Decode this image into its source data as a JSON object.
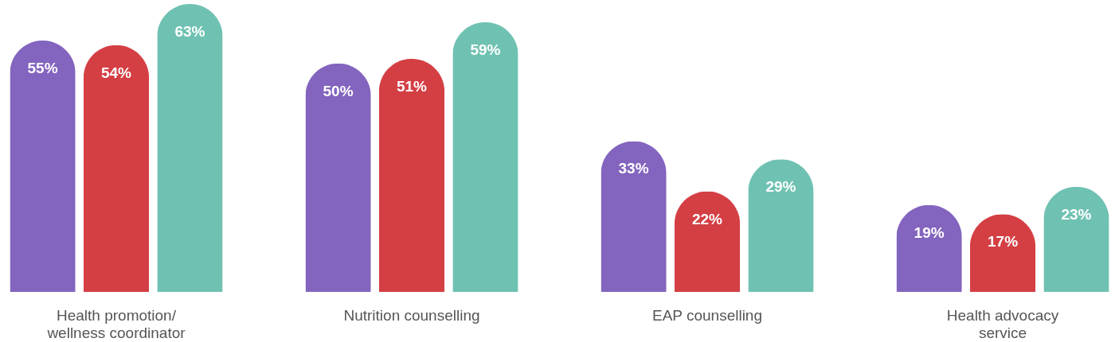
{
  "chart_data": {
    "type": "bar",
    "categories": [
      "Health promotion/\nwellness coordinator",
      "Nutrition counselling",
      "EAP counselling",
      "Health advocacy\nservice"
    ],
    "series": [
      {
        "color": "#8364be",
        "values": [
          55,
          50,
          33,
          19
        ],
        "value_labels": [
          "55%",
          "50%",
          "33%",
          "19%"
        ]
      },
      {
        "color": "#d43f44",
        "values": [
          54,
          51,
          22,
          17
        ],
        "value_labels": [
          "54%",
          "51%",
          "22%",
          "17%"
        ]
      },
      {
        "color": "#6fc2b2",
        "values": [
          63,
          59,
          29,
          23
        ],
        "value_labels": [
          "63%",
          "59%",
          "29%",
          "23%"
        ]
      }
    ],
    "grid": false,
    "legend": false
  }
}
